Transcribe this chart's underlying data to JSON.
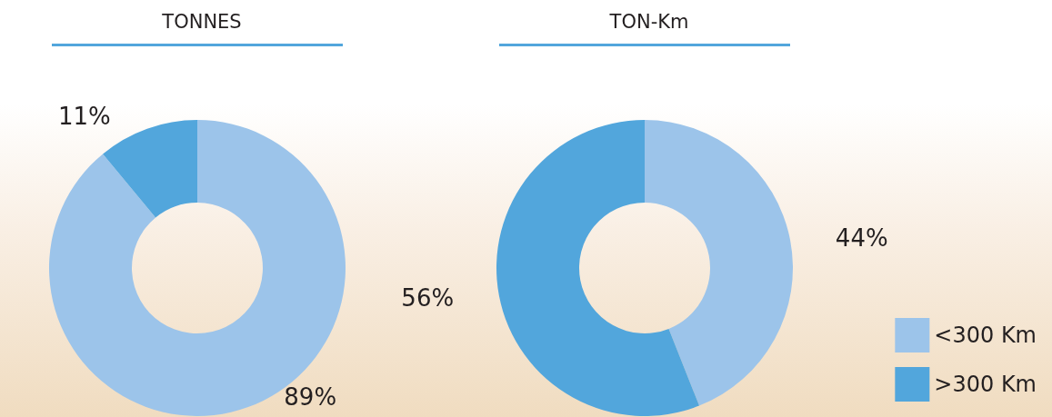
{
  "chart_data": {
    "type": "donut",
    "categories": [
      "<300 Km",
      ">300 Km"
    ],
    "colors": [
      "#9cc4ea",
      "#52a6dc"
    ],
    "legend": "bottom right",
    "series": [
      {
        "name": "TONNES",
        "values": [
          89,
          11
        ],
        "value_labels": [
          "89%",
          "11%"
        ]
      },
      {
        "name": "TON-Km",
        "values": [
          44,
          56
        ],
        "value_labels": [
          "44%",
          "56%"
        ]
      }
    ]
  }
}
